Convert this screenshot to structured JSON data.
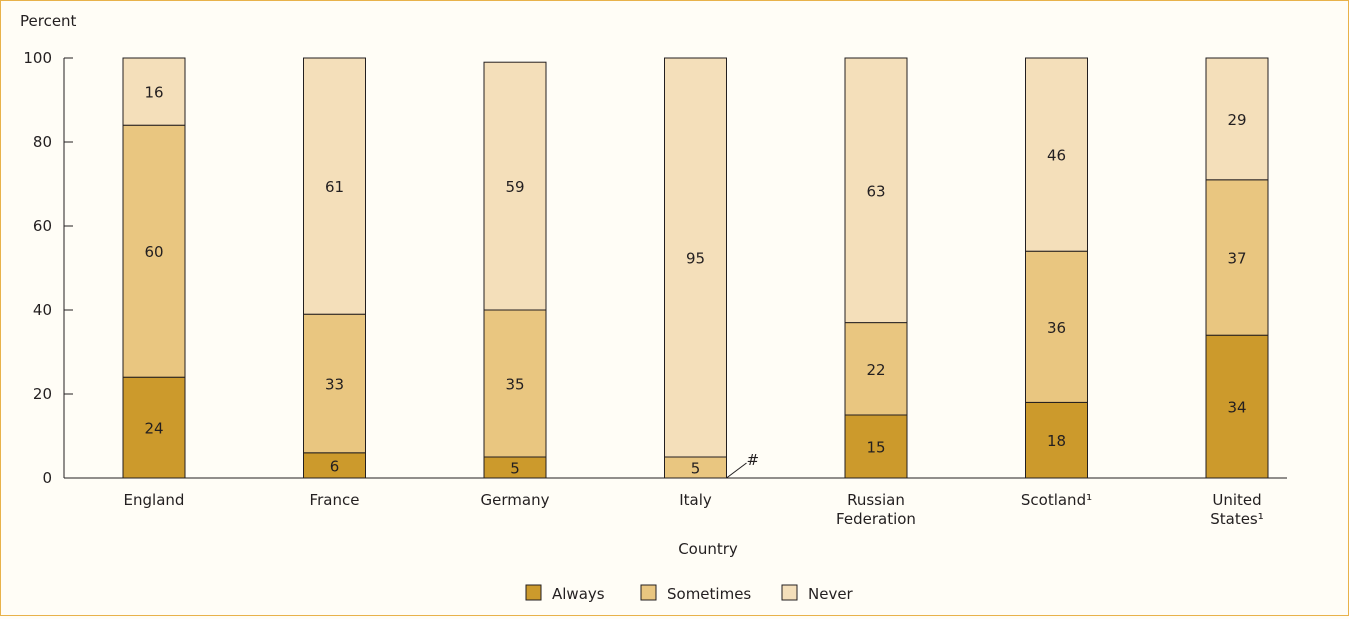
{
  "chart_data": {
    "type": "bar",
    "stacked": true,
    "ylabel": "Percent",
    "xlabel": "Country",
    "ylim": [
      0,
      100
    ],
    "yticks": [
      0,
      20,
      40,
      60,
      80,
      100
    ],
    "categories": [
      [
        "England"
      ],
      [
        "France"
      ],
      [
        "Germany"
      ],
      [
        "Italy"
      ],
      [
        "Russian",
        "Federation"
      ],
      [
        "Scotland¹"
      ],
      [
        "United",
        "States¹"
      ]
    ],
    "series": [
      {
        "name": "Always",
        "color": "#cc9a2c",
        "values": [
          24,
          6,
          5,
          0,
          15,
          18,
          34
        ]
      },
      {
        "name": "Sometimes",
        "color": "#e9c680",
        "values": [
          60,
          33,
          35,
          5,
          22,
          36,
          37
        ]
      },
      {
        "name": "Never",
        "color": "#f4dfba",
        "values": [
          16,
          61,
          59,
          95,
          63,
          46,
          29
        ]
      }
    ],
    "annotations": [
      {
        "category": "Italy",
        "series": "Always",
        "text": "#"
      }
    ],
    "legend_position": "bottom-center"
  }
}
